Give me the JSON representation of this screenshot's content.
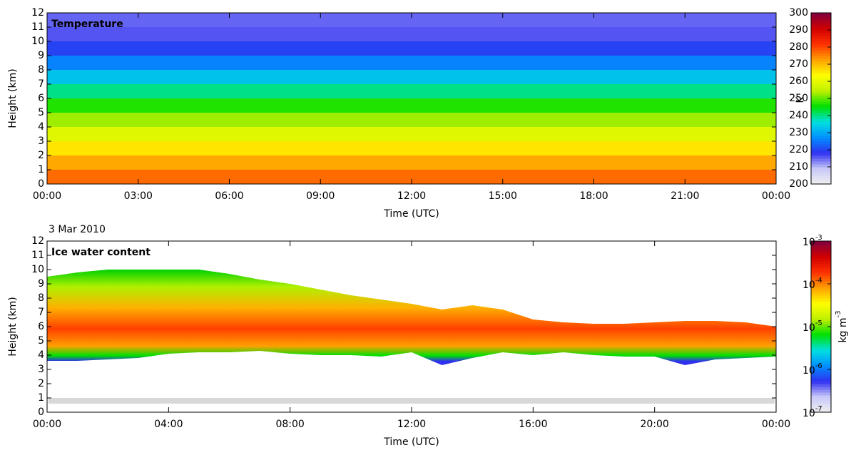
{
  "chart_data": [
    {
      "type": "heatmap",
      "panel_label": "Temperature",
      "xlabel": "Time (UTC)",
      "ylabel": "Height (km)",
      "xlim": [
        0,
        24
      ],
      "xticks": [
        {
          "value": 0,
          "label": "00:00"
        },
        {
          "value": 3,
          "label": "03:00"
        },
        {
          "value": 6,
          "label": "06:00"
        },
        {
          "value": 9,
          "label": "09:00"
        },
        {
          "value": 12,
          "label": "12:00"
        },
        {
          "value": 15,
          "label": "15:00"
        },
        {
          "value": 18,
          "label": "18:00"
        },
        {
          "value": 21,
          "label": "21:00"
        },
        {
          "value": 24,
          "label": "00:00"
        }
      ],
      "ylim": [
        0,
        12
      ],
      "yticks": [
        0,
        1,
        2,
        3,
        4,
        5,
        6,
        7,
        8,
        9,
        10,
        11,
        12
      ],
      "y": [
        0.5,
        1.5,
        2.5,
        3.5,
        4.5,
        5.5,
        6.5,
        7.5,
        8.5,
        9.5,
        10.5,
        11.5
      ],
      "values": [
        277,
        272,
        266,
        259,
        253,
        247,
        240,
        233,
        226,
        220,
        216,
        215
      ],
      "colorbar_label": "K",
      "clim": [
        200,
        300
      ],
      "cticks": [
        200,
        210,
        220,
        230,
        240,
        250,
        260,
        270,
        280,
        290,
        300
      ],
      "colormap": [
        "#f0f0f0",
        "#c8c8f8",
        "#3030f0",
        "#0090ff",
        "#00e0e0",
        "#00e000",
        "#c0f000",
        "#ffff00",
        "#ffa000",
        "#ff3000",
        "#d00000",
        "#800040"
      ]
    },
    {
      "type": "band",
      "date": "3 Mar 2010",
      "panel_label": "Ice water content",
      "xlabel": "Time (UTC)",
      "ylabel": "Height (km)",
      "xlim": [
        0,
        24
      ],
      "xticks": [
        {
          "value": 0,
          "label": "00:00"
        },
        {
          "value": 4,
          "label": "04:00"
        },
        {
          "value": 8,
          "label": "08:00"
        },
        {
          "value": 12,
          "label": "12:00"
        },
        {
          "value": 16,
          "label": "16:00"
        },
        {
          "value": 20,
          "label": "20:00"
        },
        {
          "value": 24,
          "label": "00:00"
        }
      ],
      "ylim": [
        0,
        12
      ],
      "yticks": [
        0,
        1,
        2,
        3,
        4,
        5,
        6,
        7,
        8,
        9,
        10,
        11,
        12
      ],
      "x": [
        0,
        1,
        2,
        3,
        4,
        5,
        6,
        7,
        8,
        9,
        10,
        11,
        12,
        13,
        14,
        15,
        16,
        17,
        18,
        19,
        20,
        21,
        22,
        23,
        24
      ],
      "top": [
        9.5,
        9.8,
        10,
        10,
        10,
        10,
        9.7,
        9.3,
        9,
        8.6,
        8.2,
        7.9,
        7.6,
        7.2,
        7.5,
        7.2,
        6.5,
        6.3,
        6.2,
        6.2,
        6.3,
        6.4,
        6.4,
        6.3,
        6.0
      ],
      "base": [
        3.6,
        3.6,
        3.7,
        3.8,
        4.1,
        4.2,
        4.2,
        4.3,
        4.1,
        4.0,
        4.0,
        3.9,
        4.2,
        3.3,
        3.8,
        4.2,
        4.0,
        4.2,
        4.0,
        3.9,
        3.9,
        3.3,
        3.7,
        3.8,
        3.9
      ],
      "colorbar_label": {
        "text": "kg m",
        "exponent": "-3"
      },
      "clim": [
        1e-07,
        0.001
      ],
      "log_scale": true,
      "cticks": [
        {
          "value": 1e-07,
          "label": "10",
          "exponent": "-7"
        },
        {
          "value": 1e-06,
          "label": "10",
          "exponent": "-6"
        },
        {
          "value": 1e-05,
          "label": "10",
          "exponent": "-5"
        },
        {
          "value": 0.0001,
          "label": "10",
          "exponent": "-4"
        },
        {
          "value": 0.001,
          "label": "10",
          "exponent": "-3"
        }
      ],
      "colormap": [
        "#f0f0f0",
        "#c8c8f8",
        "#3030f0",
        "#0090ff",
        "#00e0e0",
        "#00e000",
        "#c0f000",
        "#ffff00",
        "#ffa000",
        "#ff3000",
        "#d00000",
        "#800040"
      ]
    }
  ]
}
